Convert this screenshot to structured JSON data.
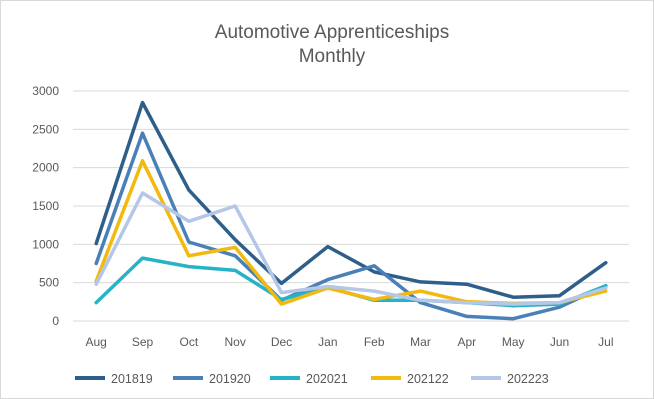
{
  "chart_data": {
    "type": "line",
    "title": "Automotive Apprenticeships",
    "subtitle": "Monthly",
    "xlabel": "",
    "ylabel": "",
    "categories": [
      "Aug",
      "Sep",
      "Oct",
      "Nov",
      "Dec",
      "Jan",
      "Feb",
      "Mar",
      "Apr",
      "May",
      "Jun",
      "Jul"
    ],
    "ylim": [
      0,
      3000
    ],
    "yticks": [
      0,
      500,
      1000,
      1500,
      2000,
      2500,
      3000
    ],
    "grid": "horizontal",
    "legend_position": "bottom",
    "series": [
      {
        "name": "201819",
        "color": "#2e5f8a",
        "values": [
          1010,
          2850,
          1710,
          1060,
          490,
          970,
          640,
          510,
          480,
          310,
          330,
          760
        ]
      },
      {
        "name": "201920",
        "color": "#4a80b8",
        "values": [
          750,
          2450,
          1030,
          850,
          270,
          540,
          720,
          240,
          60,
          30,
          180,
          460
        ]
      },
      {
        "name": "202021",
        "color": "#27b3c7",
        "values": [
          240,
          820,
          710,
          660,
          280,
          440,
          270,
          270,
          240,
          200,
          220,
          460
        ]
      },
      {
        "name": "202122",
        "color": "#f2b90f",
        "values": [
          520,
          2090,
          850,
          960,
          220,
          430,
          280,
          390,
          250,
          230,
          240,
          390
        ]
      },
      {
        "name": "202223",
        "color": "#b4c7e7",
        "values": [
          480,
          1670,
          1300,
          1500,
          370,
          450,
          390,
          270,
          240,
          220,
          240,
          430
        ]
      }
    ]
  }
}
